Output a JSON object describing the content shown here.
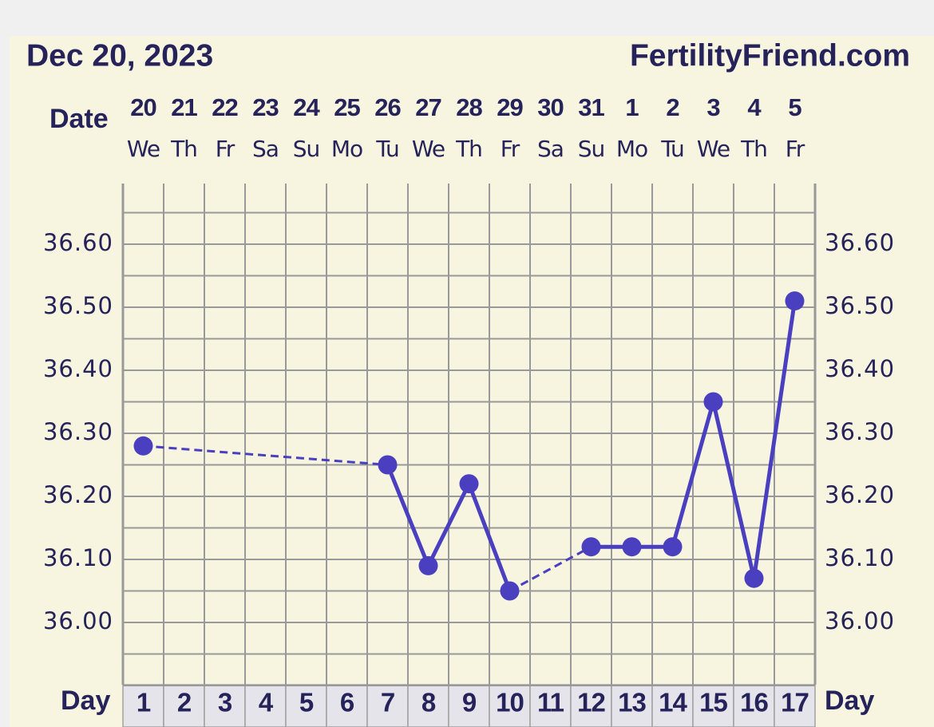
{
  "chart_data": {
    "type": "line",
    "title": "Dec 20, 2023",
    "site": "FertilityFriend.com",
    "date_label": "Date",
    "day_label": "Day",
    "dates": [
      "20",
      "21",
      "22",
      "23",
      "24",
      "25",
      "26",
      "27",
      "28",
      "29",
      "30",
      "31",
      "1",
      "2",
      "3",
      "4",
      "5"
    ],
    "weekdays": [
      "We",
      "Th",
      "Fr",
      "Sa",
      "Su",
      "Mo",
      "Tu",
      "We",
      "Th",
      "Fr",
      "Sa",
      "Su",
      "Mo",
      "Tu",
      "We",
      "Th",
      "Fr"
    ],
    "categories": [
      1,
      2,
      3,
      4,
      5,
      6,
      7,
      8,
      9,
      10,
      11,
      12,
      13,
      14,
      15,
      16,
      17
    ],
    "series": [
      {
        "color": "#4a3fbf",
        "values": [
          36.28,
          null,
          null,
          null,
          null,
          null,
          36.25,
          36.09,
          36.22,
          36.05,
          null,
          36.12,
          36.12,
          36.12,
          36.35,
          36.07,
          36.51
        ]
      }
    ],
    "ylim": [
      35.9,
      36.7
    ],
    "yticks": [
      {
        "value": 36.0,
        "label": "36.00"
      },
      {
        "value": 36.1,
        "label": "36.10"
      },
      {
        "value": 36.2,
        "label": "36.20"
      },
      {
        "value": 36.3,
        "label": "36.30"
      },
      {
        "value": 36.4,
        "label": "36.40"
      },
      {
        "value": 36.5,
        "label": "36.50"
      },
      {
        "value": 36.6,
        "label": "36.60"
      }
    ],
    "grid": true
  }
}
